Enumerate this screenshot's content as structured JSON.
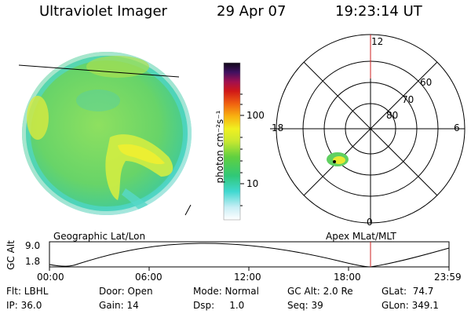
{
  "header": {
    "title": "Ultraviolet Imager",
    "date": "29 Apr 07",
    "time": "19:23:14 UT"
  },
  "colorbar": {
    "unit_label": "photon cm⁻²s⁻¹",
    "ticks": [
      "100",
      "10"
    ]
  },
  "polar": {
    "mlt_labels": [
      "12",
      "18",
      "6",
      "0"
    ],
    "lat_labels": [
      "60",
      "70",
      "80"
    ]
  },
  "altitude_plot": {
    "left_title": "Geographic Lat/Lon",
    "right_title": "Apex MLat/MLT",
    "ylabel": "GC Alt",
    "y_ticks": [
      "9.0",
      "1.8"
    ],
    "x_ticks": [
      "00:00",
      "06:00",
      "12:00",
      "18:00",
      "23:59"
    ],
    "current_time_marker_color": "#cc2222"
  },
  "info": {
    "flt": "Flt: LBHL",
    "ip": "IP: 36.0",
    "door": "Door: Open",
    "gain": "Gain: 14",
    "mode": "Mode: Normal",
    "dsp": "Dsp:     1.0",
    "gcalt": "GC Alt: 2.0 Re",
    "seq": "Seq: 39",
    "glat": "GLat:  74.7",
    "glon": "GLon: 349.1"
  }
}
